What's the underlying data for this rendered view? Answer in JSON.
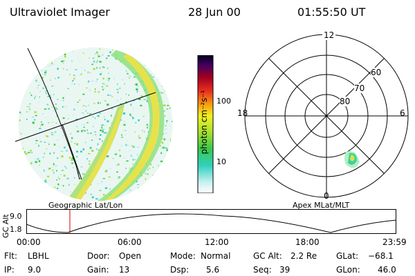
{
  "header": {
    "title": "Ultraviolet Imager",
    "date": "28 Jun 00",
    "time": "01:55:50 UT"
  },
  "imager": {
    "grid_caption": "Geographic Lat/Lon"
  },
  "colorbar": {
    "unit_label": "photon cm⁻²s⁻¹",
    "ticks": [
      "100",
      "10"
    ]
  },
  "polar": {
    "caption": "Apex MLat/MLT",
    "mlt_labels": {
      "top": "12",
      "left": "18",
      "right": "6",
      "bottom": "0"
    },
    "lat_labels": [
      "60",
      "70",
      "80"
    ]
  },
  "altitude_plot": {
    "axis_title": "GC Alt",
    "y_ticks": [
      "9.0",
      "1.8"
    ],
    "x_ticks": [
      "00:00",
      "06:00",
      "12:00",
      "18:00",
      "23:59"
    ],
    "marker_color": "#d00000"
  },
  "status": {
    "flt": {
      "label": "Flt:",
      "value": "LBHL"
    },
    "ip": {
      "label": "IP:",
      "value": "9.0"
    },
    "door": {
      "label": "Door:",
      "value": "Open"
    },
    "gain": {
      "label": "Gain:",
      "value": "13"
    },
    "mode": {
      "label": "Mode:",
      "value": "Normal"
    },
    "dsp": {
      "label": "Dsp:",
      "value": "5.6"
    },
    "gc_alt": {
      "label": "GC Alt:",
      "value": "2.2 Re"
    },
    "seq": {
      "label": "Seq:",
      "value": "39"
    },
    "glat": {
      "label": "GLat:",
      "value": "−68.1"
    },
    "glon": {
      "label": "GLon:",
      "value": "46.0"
    }
  },
  "colors": {
    "colorbar_stops": [
      "#ffffff",
      "#c8f0f0",
      "#30d0c0",
      "#3ac84c",
      "#a8e030",
      "#f0f020",
      "#f8a010",
      "#e83020",
      "#a00020",
      "#400060",
      "#000020"
    ]
  }
}
